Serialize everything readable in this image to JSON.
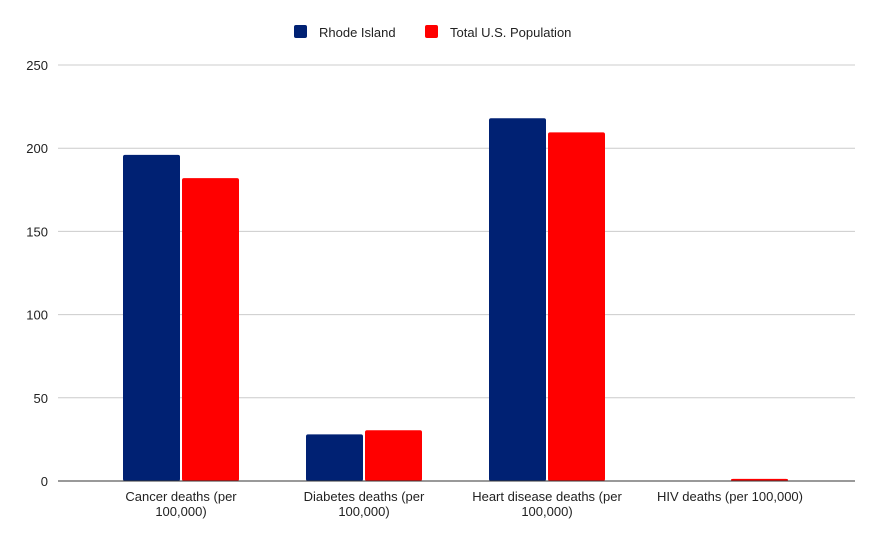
{
  "chart_data": {
    "type": "bar",
    "title": "",
    "xlabel": "",
    "ylabel": "",
    "categories": [
      [
        "Cancer deaths (per",
        "100,000)"
      ],
      [
        "Diabetes deaths (per",
        "100,000)"
      ],
      [
        "Heart disease deaths (per",
        "100,000)"
      ],
      [
        "HIV deaths (per 100,000)"
      ]
    ],
    "series": [
      {
        "name": "Rhode Island",
        "color": "#002173",
        "values": [
          196,
          28,
          218,
          0
        ]
      },
      {
        "name": "Total U.S. Population",
        "color": "#ff0000",
        "values": [
          182,
          30.5,
          209.5,
          1.3
        ]
      }
    ],
    "ylim": [
      0,
      250
    ],
    "yticks": [
      0,
      50,
      100,
      150,
      200,
      250
    ],
    "grid": true,
    "legend": "top"
  }
}
